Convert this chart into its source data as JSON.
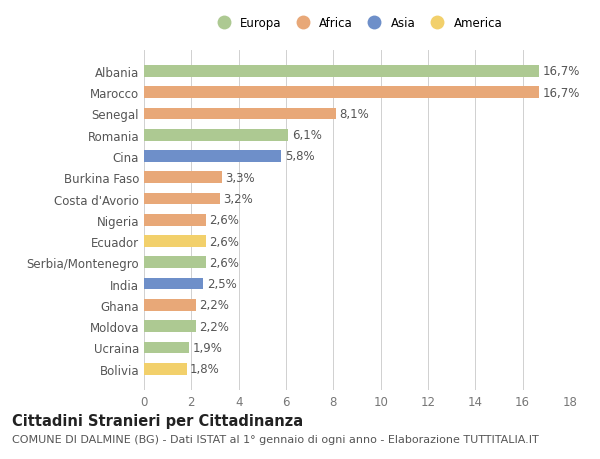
{
  "categories": [
    "Albania",
    "Marocco",
    "Senegal",
    "Romania",
    "Cina",
    "Burkina Faso",
    "Costa d'Avorio",
    "Nigeria",
    "Ecuador",
    "Serbia/Montenegro",
    "India",
    "Ghana",
    "Moldova",
    "Ucraina",
    "Bolivia"
  ],
  "values": [
    16.7,
    16.7,
    8.1,
    6.1,
    5.8,
    3.3,
    3.2,
    2.6,
    2.6,
    2.6,
    2.5,
    2.2,
    2.2,
    1.9,
    1.8
  ],
  "continents": [
    "Europa",
    "Africa",
    "Africa",
    "Europa",
    "Asia",
    "Africa",
    "Africa",
    "Africa",
    "America",
    "Europa",
    "Asia",
    "Africa",
    "Europa",
    "Europa",
    "America"
  ],
  "colors": {
    "Europa": "#adc992",
    "Africa": "#e8a878",
    "Asia": "#6e8fc9",
    "America": "#f2d06b"
  },
  "legend_order": [
    "Europa",
    "Africa",
    "Asia",
    "America"
  ],
  "xlim": [
    0,
    18
  ],
  "xticks": [
    0,
    2,
    4,
    6,
    8,
    10,
    12,
    14,
    16,
    18
  ],
  "title": "Cittadini Stranieri per Cittadinanza",
  "subtitle": "COMUNE DI DALMINE (BG) - Dati ISTAT al 1° gennaio di ogni anno - Elaborazione TUTTITALIA.IT",
  "bg_color": "#ffffff",
  "grid_color": "#d0d0d0",
  "bar_height": 0.55,
  "label_fontsize": 8.5,
  "tick_fontsize": 8.5,
  "title_fontsize": 10.5,
  "subtitle_fontsize": 8.0
}
